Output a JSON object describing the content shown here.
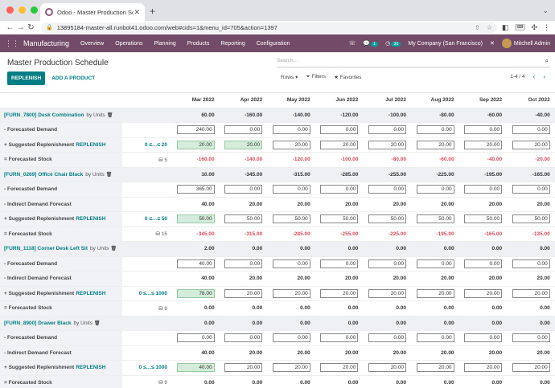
{
  "browser": {
    "tab_title": "Odoo - Master Production Sche",
    "url": "13895184-master-all.runbot41.odoo.com/web#cids=1&menu_id=705&action=1397",
    "colors": {
      "close": "#fe5f57",
      "min": "#febc2e",
      "max": "#28c840"
    }
  },
  "navbar": {
    "app": "Manufacturing",
    "menus": [
      "Overview",
      "Operations",
      "Planning",
      "Products",
      "Reporting",
      "Configuration"
    ],
    "msg_count": "1",
    "activity_count": "36",
    "company": "My Company (San Francisco)",
    "user": "Mitchell Admin"
  },
  "control": {
    "title": "Master Production Schedule",
    "search_placeholder": "Search...",
    "replenish": "REPLENISH",
    "add_product": "ADD A PRODUCT",
    "rows": "Rows",
    "filters": "Filters",
    "favorites": "Favorites",
    "pager": "1-4 / 4"
  },
  "months": [
    "Mar 2022",
    "Apr 2022",
    "May 2022",
    "Jun 2022",
    "Jul 2022",
    "Aug 2022",
    "Sep 2022",
    "Oct 2022"
  ],
  "products": [
    {
      "code": "[FURN_7800] Desk Combination",
      "unit": "by Units",
      "header": [
        "60.00",
        "-160.00",
        "-140.00",
        "-120.00",
        "-100.00",
        "-80.00",
        "-60.00",
        "-40.00"
      ],
      "forecast_demand": [
        "240.00",
        "0.00",
        "0.00",
        "0.00",
        "0.00",
        "0.00",
        "0.00",
        "0.00"
      ],
      "indirect": null,
      "range": "0 ≤…≤ 20",
      "replenish": [
        "20.00",
        "20.00",
        "20.00",
        "20.00",
        "20.00",
        "20.00",
        "20.00",
        "20.00"
      ],
      "stock_sfx": "5",
      "stock": [
        "-160.00",
        "-140.00",
        "-120.00",
        "-100.00",
        "-80.00",
        "-60.00",
        "-40.00",
        "-20.00"
      ]
    },
    {
      "code": "[FURN_0269] Office Chair Black",
      "unit": "by Units",
      "header": [
        "10.00",
        "-345.00",
        "-315.00",
        "-285.00",
        "-255.00",
        "-225.00",
        "-195.00",
        "-165.00"
      ],
      "forecast_demand": [
        "365.00",
        "0.00",
        "0.00",
        "0.00",
        "0.00",
        "0.00",
        "0.00",
        "0.00"
      ],
      "indirect": [
        "40.00",
        "20.00",
        "20.00",
        "20.00",
        "20.00",
        "20.00",
        "20.00",
        "20.00"
      ],
      "range": "0 ≤…≤ 50",
      "replenish": [
        "50.00",
        "50.00",
        "50.00",
        "50.00",
        "50.00",
        "50.00",
        "50.00",
        "50.00"
      ],
      "stock_sfx": "15",
      "stock": [
        "-345.00",
        "-315.00",
        "-285.00",
        "-255.00",
        "-225.00",
        "-195.00",
        "-165.00",
        "-135.00"
      ]
    },
    {
      "code": "[FURN_1118] Corner Desk Left Sit",
      "unit": "by Units",
      "header": [
        "2.00",
        "0.00",
        "0.00",
        "0.00",
        "0.00",
        "0.00",
        "0.00",
        "0.00"
      ],
      "forecast_demand": [
        "40.00",
        "0.00",
        "0.00",
        "0.00",
        "0.00",
        "0.00",
        "0.00",
        "0.00"
      ],
      "indirect": [
        "40.00",
        "20.00",
        "20.00",
        "20.00",
        "20.00",
        "20.00",
        "20.00",
        "20.00"
      ],
      "range": "0 ≤…≤ 1000",
      "replenish": [
        "78.00",
        "20.00",
        "20.00",
        "20.00",
        "20.00",
        "20.00",
        "20.00",
        "20.00"
      ],
      "stock_sfx": "0",
      "stock": [
        "0.00",
        "0.00",
        "0.00",
        "0.00",
        "0.00",
        "0.00",
        "0.00",
        "0.00"
      ]
    },
    {
      "code": "[FURN_8900] Drawer Black",
      "unit": "by Units",
      "header": [
        "0.00",
        "0.00",
        "0.00",
        "0.00",
        "0.00",
        "0.00",
        "0.00",
        "0.00"
      ],
      "forecast_demand": [
        "0.00",
        "0.00",
        "0.00",
        "0.00",
        "0.00",
        "0.00",
        "0.00",
        "0.00"
      ],
      "indirect": [
        "40.00",
        "20.00",
        "20.00",
        "20.00",
        "20.00",
        "20.00",
        "20.00",
        "20.00"
      ],
      "range": "0 ≤…≤ 1000",
      "replenish": [
        "40.00",
        "20.00",
        "20.00",
        "20.00",
        "20.00",
        "20.00",
        "20.00",
        "20.00"
      ],
      "stock_sfx": "0",
      "stock": [
        "0.00",
        "0.00",
        "0.00",
        "0.00",
        "0.00",
        "0.00",
        "0.00",
        "0.00"
      ]
    }
  ],
  "labels": {
    "forecast_demand": "- Forecasted Demand",
    "indirect": "- Indirect Demand Forecast",
    "suggested": "+ Suggested Replenishment",
    "replenish_link": "REPLENISH",
    "stock": "= Forecasted Stock"
  }
}
